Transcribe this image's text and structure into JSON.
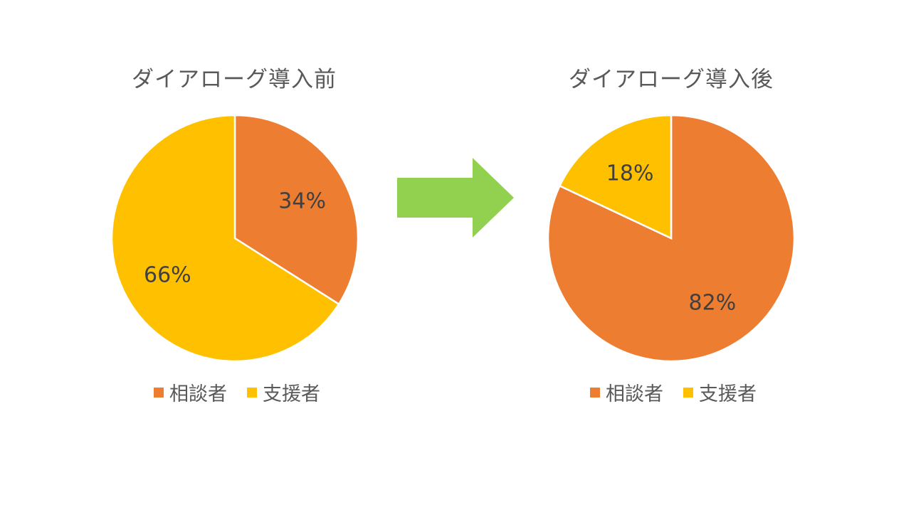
{
  "colors": {
    "series_a": "#ED7D31",
    "series_b": "#FFC000",
    "arrow": "#92D050",
    "slice_border": "#ffffff"
  },
  "arrow_icon": "right-arrow-icon",
  "chart_data": [
    {
      "type": "pie",
      "title": "ダイアローグ導入前",
      "categories": [
        "相談者",
        "支援者"
      ],
      "values": [
        34,
        66
      ],
      "data_labels": [
        "34%",
        "66%"
      ],
      "start_angle_deg": 0,
      "direction": "clockwise",
      "legend_position": "bottom"
    },
    {
      "type": "pie",
      "title": "ダイアローグ導入後",
      "categories": [
        "相談者",
        "支援者"
      ],
      "values": [
        82,
        18
      ],
      "data_labels": [
        "82%",
        "18%"
      ],
      "start_angle_deg": 0,
      "direction": "clockwise",
      "legend_position": "bottom"
    }
  ]
}
